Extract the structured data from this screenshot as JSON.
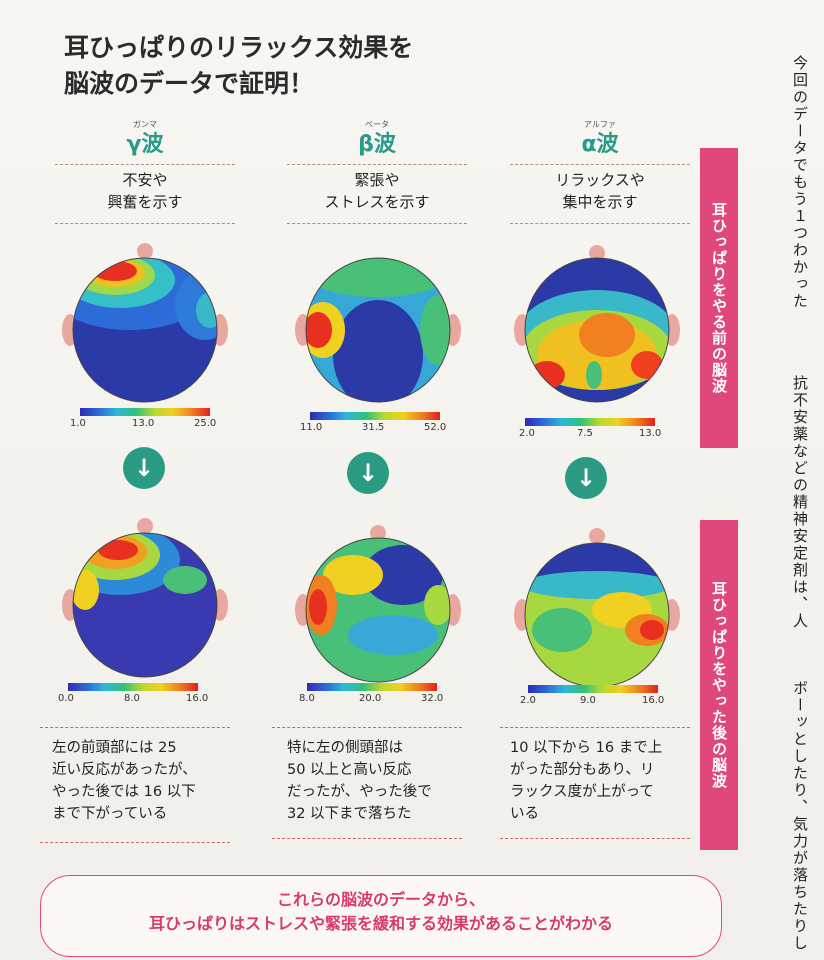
{
  "headline": {
    "line1": "耳ひっぱりのリラックス効果を",
    "line2": "脳波のデータで証明！"
  },
  "waves": [
    {
      "ruby": "ガンマ",
      "name": "γ波",
      "desc": "不安や\n興奮を示す",
      "before_scale": [
        "1.0",
        "13.0",
        "25.0"
      ],
      "after_scale": [
        "0.0",
        "8.0",
        "16.0"
      ],
      "caption": "左の前頭部には 25\n近い反応があったが、\nやった後では 16 以下\nまで下がっている"
    },
    {
      "ruby": "ベータ",
      "name": "β波",
      "desc": "緊張や\nストレスを示す",
      "before_scale": [
        "11.0",
        "31.5",
        "52.0"
      ],
      "after_scale": [
        "8.0",
        "20.0",
        "32.0"
      ],
      "caption": "特に左の側頭部は\n50 以上と高い反応\nだったが、やった後で\n32 以下まで落ちた"
    },
    {
      "ruby": "アルファ",
      "name": "α波",
      "desc": "リラックスや\n集中を示す",
      "before_scale": [
        "2.0",
        "7.5",
        "13.0"
      ],
      "after_scale": [
        "2.0",
        "9.0",
        "16.0"
      ],
      "caption": "10 以下から 16 まで上\nがった部分もあり、リ\nラックス度が上がって\nいる"
    }
  ],
  "arrow_glyph": "↓",
  "bands": {
    "before": "耳ひっぱりをやる前の脳波",
    "after": "耳ひっぱりをやった後の脳波"
  },
  "side_text": {
    "col1_a": "今回のデータでもう１つわかった",
    "col2_a": "抗不安薬などの精神安定剤は、人",
    "col3_a": "ボーッとしたり、気力が落ちたりし"
  },
  "conclusion": {
    "line1": "これらの脳波のデータから、",
    "line2": "耳ひっぱりはストレスや緊張を緩和する効果があることがわかる"
  },
  "colors": {
    "accent_pink": "#e0487c",
    "accent_green": "#2a9a82"
  }
}
